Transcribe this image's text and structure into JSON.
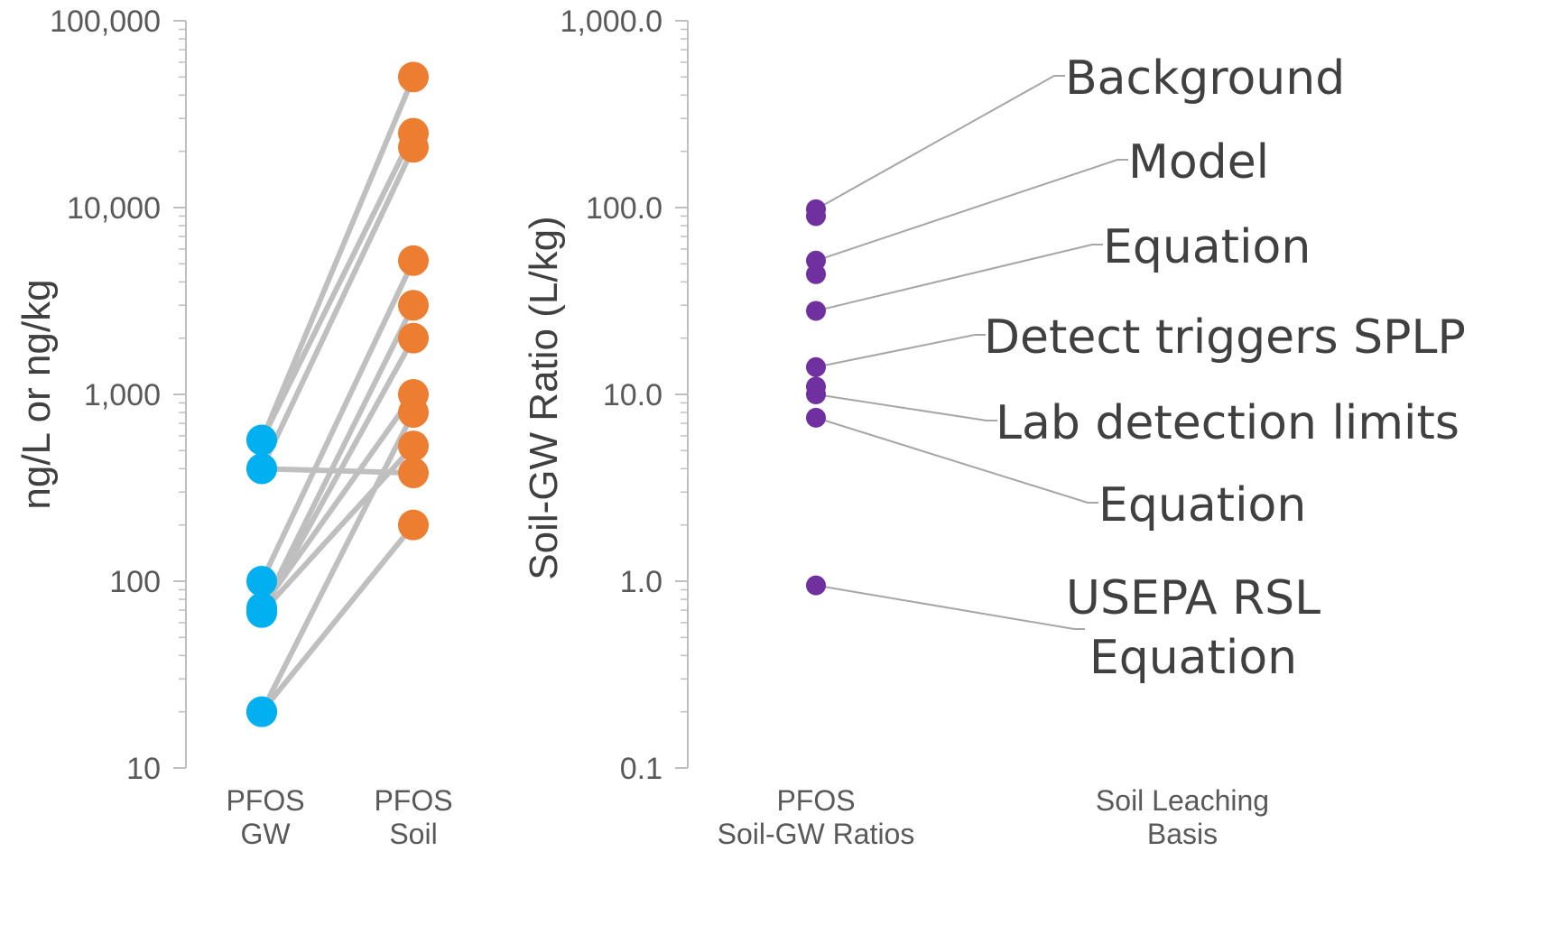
{
  "chart_data": [
    {
      "type": "scatter",
      "ylabel": "ng/L or ng/kg",
      "yscale": "log",
      "ylim": [
        10,
        100000
      ],
      "y_ticks": [
        "10",
        "100",
        "1,000",
        "10,000",
        "100,000"
      ],
      "categories": [
        {
          "line1": "PFOS",
          "line2": "GW"
        },
        {
          "line1": "PFOS",
          "line2": "Soil"
        }
      ],
      "colors": {
        "gw": "#00B0F0",
        "soil": "#ED7D31",
        "line": "#BFBFBF",
        "axis": "#BFBFBF"
      },
      "pairs": [
        {
          "gw": 570,
          "soil": 50000
        },
        {
          "gw": 570,
          "soil": 25000
        },
        {
          "gw": 400,
          "soil": 21000
        },
        {
          "gw": 400,
          "soil": 380
        },
        {
          "gw": 100,
          "soil": 5200
        },
        {
          "gw": 70,
          "soil": 3000
        },
        {
          "gw": 68,
          "soil": 2000
        },
        {
          "gw": 72,
          "soil": 1000
        },
        {
          "gw": 20,
          "soil": 800
        },
        {
          "gw": 68,
          "soil": 530
        },
        {
          "gw": 20,
          "soil": 200
        }
      ]
    },
    {
      "type": "scatter",
      "ylabel": "Soil-GW Ratio (L/kg)",
      "yscale": "log",
      "ylim": [
        0.1,
        1000
      ],
      "y_ticks": [
        "0.1",
        "1.0",
        "10.0",
        "100.0",
        "1,000.0"
      ],
      "categories": [
        {
          "line1": "PFOS",
          "line2": "Soil-GW Ratios"
        },
        {
          "line1": "Soil Leaching",
          "line2": "Basis"
        }
      ],
      "colors": {
        "point": "#7030A0",
        "leader": "#A6A6A6",
        "axis": "#BFBFBF"
      },
      "values": [
        98,
        90,
        52,
        44,
        28,
        14,
        11,
        10,
        7.5,
        0.95
      ],
      "annotations": [
        {
          "lines": [
            "Background"
          ],
          "value": 98
        },
        {
          "lines": [
            "Model"
          ],
          "value": 52
        },
        {
          "lines": [
            "Equation"
          ],
          "value": 28
        },
        {
          "lines": [
            "Detect triggers SPLP"
          ],
          "value": 14
        },
        {
          "lines": [
            "Lab detection limits"
          ],
          "value": 10
        },
        {
          "lines": [
            "Equation"
          ],
          "value": 7.5
        },
        {
          "lines": [
            "USEPA RSL",
            "Equation"
          ],
          "value": 0.95
        }
      ]
    }
  ]
}
